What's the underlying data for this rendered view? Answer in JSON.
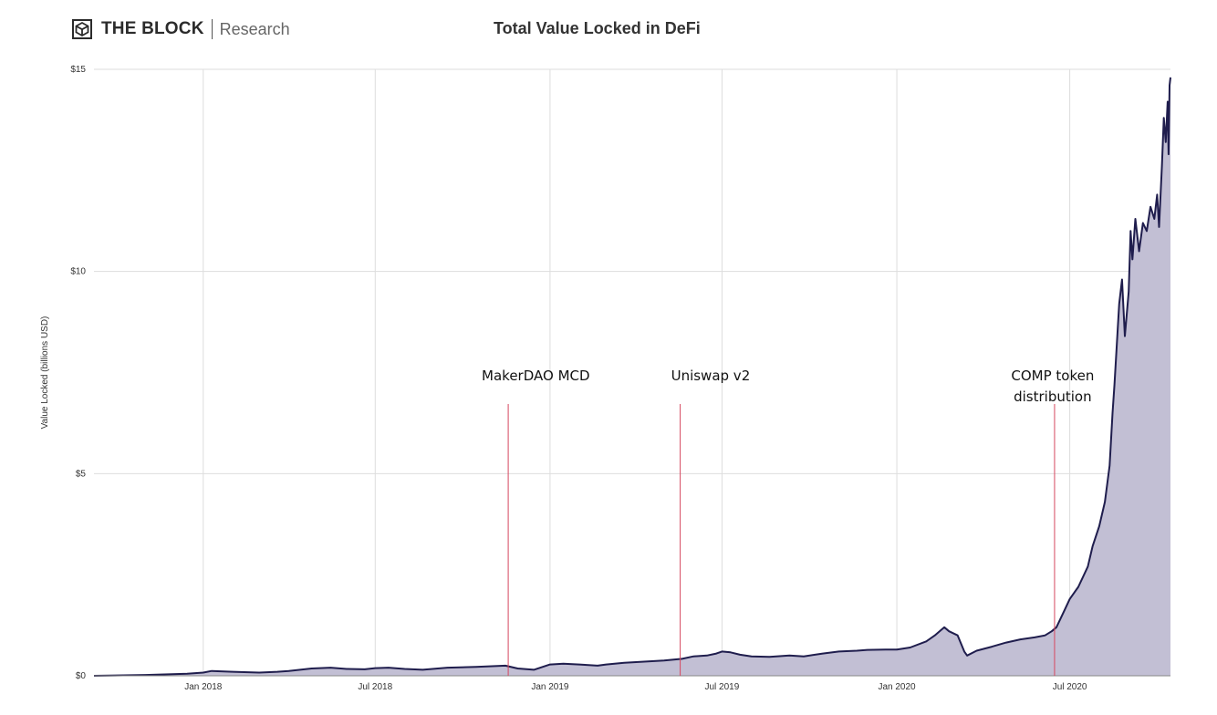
{
  "header": {
    "brand_name": "THE BLOCK",
    "brand_sub": "Research",
    "logo_icon": "cube-logo-icon"
  },
  "chart_data": {
    "type": "area",
    "title": "Total Value Locked in DeFi",
    "ylabel": "Value Locked (billions USD)",
    "xlabel": "",
    "x_range": [
      "2017-09-08",
      "2020-10-15"
    ],
    "ylim": [
      0,
      15
    ],
    "y_ticks": [
      {
        "value": 0,
        "label": "$0"
      },
      {
        "value": 5,
        "label": "$5"
      },
      {
        "value": 10,
        "label": "$10"
      },
      {
        "value": 15,
        "label": "$15"
      }
    ],
    "x_ticks": [
      {
        "date": "2018-01-01",
        "label": "Jan 2018"
      },
      {
        "date": "2018-07-01",
        "label": "Jul 2018"
      },
      {
        "date": "2019-01-01",
        "label": "Jan 2019"
      },
      {
        "date": "2019-07-01",
        "label": "Jul 2019"
      },
      {
        "date": "2020-01-01",
        "label": "Jan 2020"
      },
      {
        "date": "2020-07-01",
        "label": "Jul 2020"
      }
    ],
    "grid": true,
    "colors": {
      "line": "#1f1d4d",
      "fill": "#c2bfd4",
      "grid": "#dddddd",
      "annotation": "#d6475f"
    },
    "series": [
      {
        "points": [
          [
            "2017-09-08",
            0.0
          ],
          [
            "2017-11-01",
            0.02
          ],
          [
            "2017-12-15",
            0.05
          ],
          [
            "2018-01-01",
            0.08
          ],
          [
            "2018-01-10",
            0.12
          ],
          [
            "2018-02-01",
            0.1
          ],
          [
            "2018-03-01",
            0.08
          ],
          [
            "2018-03-20",
            0.1
          ],
          [
            "2018-04-01",
            0.12
          ],
          [
            "2018-04-25",
            0.18
          ],
          [
            "2018-05-15",
            0.2
          ],
          [
            "2018-06-01",
            0.17
          ],
          [
            "2018-06-20",
            0.16
          ],
          [
            "2018-07-01",
            0.19
          ],
          [
            "2018-07-15",
            0.2
          ],
          [
            "2018-08-01",
            0.17
          ],
          [
            "2018-08-20",
            0.15
          ],
          [
            "2018-09-15",
            0.2
          ],
          [
            "2018-10-15",
            0.22
          ],
          [
            "2018-11-15",
            0.25
          ],
          [
            "2018-11-28",
            0.18
          ],
          [
            "2018-12-15",
            0.15
          ],
          [
            "2019-01-01",
            0.28
          ],
          [
            "2019-01-15",
            0.3
          ],
          [
            "2019-02-01",
            0.28
          ],
          [
            "2019-02-20",
            0.25
          ],
          [
            "2019-03-01",
            0.28
          ],
          [
            "2019-03-20",
            0.32
          ],
          [
            "2019-04-10",
            0.35
          ],
          [
            "2019-05-01",
            0.38
          ],
          [
            "2019-05-20",
            0.42
          ],
          [
            "2019-06-01",
            0.48
          ],
          [
            "2019-06-15",
            0.5
          ],
          [
            "2019-06-25",
            0.55
          ],
          [
            "2019-07-01",
            0.6
          ],
          [
            "2019-07-10",
            0.58
          ],
          [
            "2019-07-20",
            0.52
          ],
          [
            "2019-08-01",
            0.48
          ],
          [
            "2019-08-20",
            0.47
          ],
          [
            "2019-09-10",
            0.5
          ],
          [
            "2019-09-25",
            0.48
          ],
          [
            "2019-10-15",
            0.55
          ],
          [
            "2019-11-01",
            0.6
          ],
          [
            "2019-11-20",
            0.62
          ],
          [
            "2019-12-01",
            0.64
          ],
          [
            "2019-12-20",
            0.65
          ],
          [
            "2020-01-01",
            0.65
          ],
          [
            "2020-01-15",
            0.7
          ],
          [
            "2020-02-01",
            0.85
          ],
          [
            "2020-02-10",
            1.0
          ],
          [
            "2020-02-20",
            1.2
          ],
          [
            "2020-02-25",
            1.1
          ],
          [
            "2020-03-05",
            1.0
          ],
          [
            "2020-03-12",
            0.6
          ],
          [
            "2020-03-15",
            0.5
          ],
          [
            "2020-03-25",
            0.62
          ],
          [
            "2020-04-10",
            0.72
          ],
          [
            "2020-04-25",
            0.82
          ],
          [
            "2020-05-10",
            0.9
          ],
          [
            "2020-05-25",
            0.95
          ],
          [
            "2020-06-05",
            1.0
          ],
          [
            "2020-06-12",
            1.1
          ],
          [
            "2020-06-17",
            1.2
          ],
          [
            "2020-06-25",
            1.6
          ],
          [
            "2020-07-01",
            1.9
          ],
          [
            "2020-07-10",
            2.2
          ],
          [
            "2020-07-20",
            2.7
          ],
          [
            "2020-07-25",
            3.2
          ],
          [
            "2020-08-01",
            3.7
          ],
          [
            "2020-08-07",
            4.3
          ],
          [
            "2020-08-12",
            5.2
          ],
          [
            "2020-08-15",
            6.5
          ],
          [
            "2020-08-17",
            7.2
          ],
          [
            "2020-08-22",
            9.2
          ],
          [
            "2020-08-25",
            9.8
          ],
          [
            "2020-08-28",
            8.4
          ],
          [
            "2020-09-01",
            9.5
          ],
          [
            "2020-09-03",
            11.0
          ],
          [
            "2020-09-05",
            10.3
          ],
          [
            "2020-09-08",
            11.3
          ],
          [
            "2020-09-12",
            10.5
          ],
          [
            "2020-09-16",
            11.2
          ],
          [
            "2020-09-20",
            11.0
          ],
          [
            "2020-09-24",
            11.6
          ],
          [
            "2020-09-28",
            11.3
          ],
          [
            "2020-10-01",
            11.9
          ],
          [
            "2020-10-03",
            11.1
          ],
          [
            "2020-10-06",
            12.6
          ],
          [
            "2020-10-08",
            13.8
          ],
          [
            "2020-10-10",
            13.2
          ],
          [
            "2020-10-12",
            14.2
          ],
          [
            "2020-10-13",
            12.9
          ],
          [
            "2020-10-14",
            14.6
          ],
          [
            "2020-10-15",
            14.8
          ]
        ]
      }
    ],
    "annotations": [
      {
        "date": "2018-11-18",
        "lines": [
          "MakerDAO MCD"
        ],
        "label_x_date": "2018-12-17"
      },
      {
        "date": "2019-05-18",
        "lines": [
          "Uniswap v2"
        ],
        "label_x_date": "2019-06-19"
      },
      {
        "date": "2020-06-15",
        "lines": [
          "COMP token",
          "distribution"
        ],
        "label_x_date": "2020-06-13"
      }
    ]
  }
}
